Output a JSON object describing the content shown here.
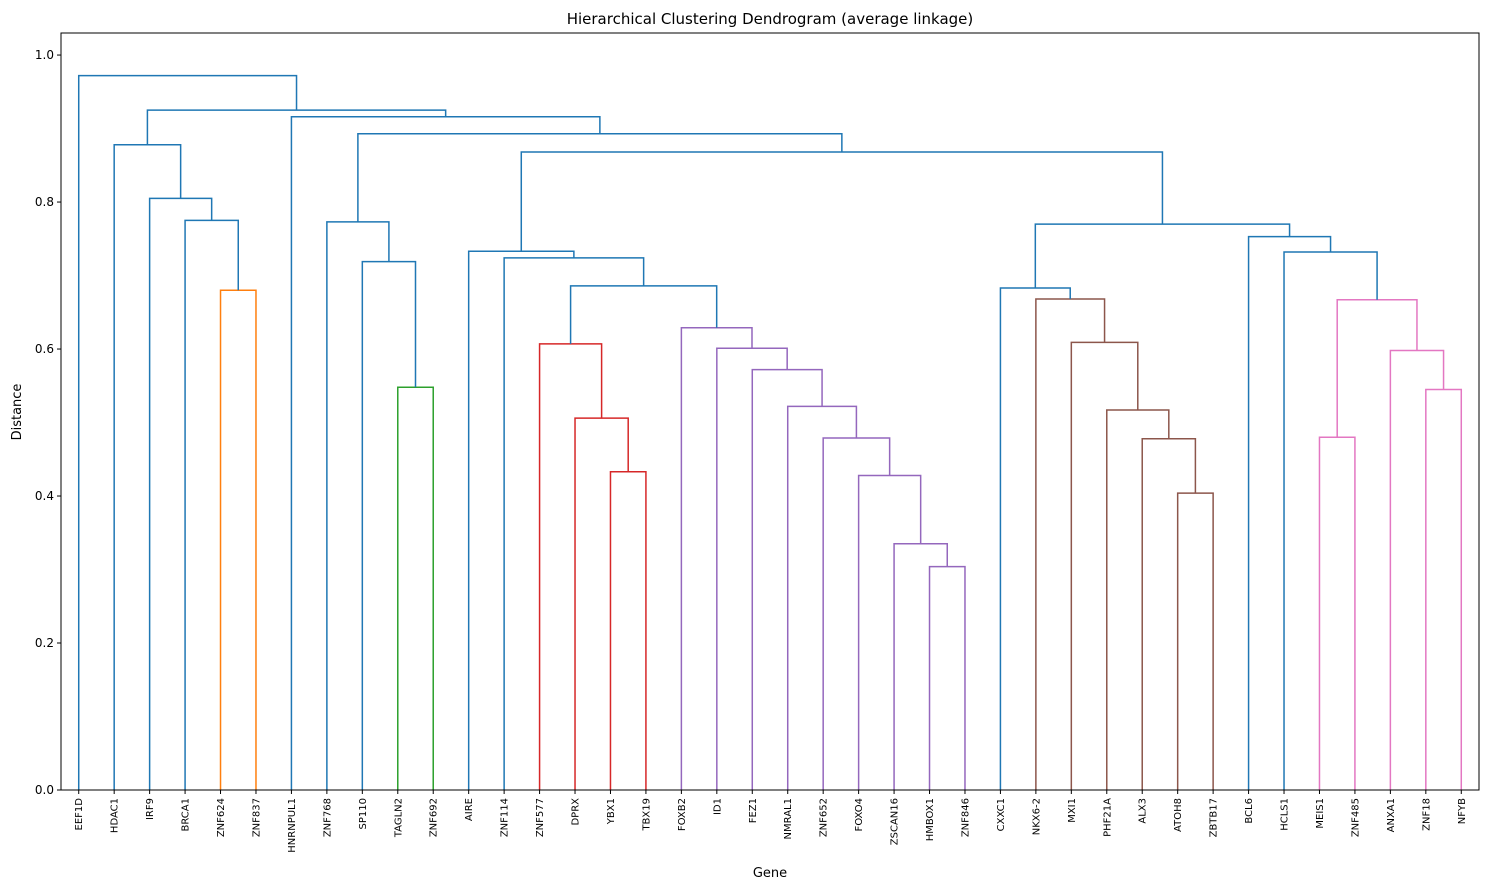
{
  "chart_data": {
    "type": "dendrogram",
    "title": "Hierarchical Clustering Dendrogram (average linkage)",
    "xlabel": "Gene",
    "ylabel": "Distance",
    "ylim": [
      0,
      1.03
    ],
    "yticks": [
      "0.0",
      "0.2",
      "0.4",
      "0.6",
      "0.8",
      "1.0"
    ],
    "grid": false,
    "leaves": [
      "EEF1D",
      "HDAC1",
      "IRF9",
      "BRCA1",
      "ZNF624",
      "ZNF837",
      "HNRNPUL1",
      "ZNF768",
      "SP110",
      "TAGLN2",
      "ZNF692",
      "AIRE",
      "ZNF114",
      "ZNF577",
      "DPRX",
      "YBX1",
      "TBX19",
      "FOXB2",
      "ID1",
      "FEZ1",
      "NMRAL1",
      "ZNF652",
      "FOXO4",
      "ZSCAN16",
      "HMBOX1",
      "ZNF846",
      "CXXC1",
      "NKX6-2",
      "MXI1",
      "PHF21A",
      "ALX3",
      "ATOH8",
      "ZBTB17",
      "BCL6",
      "HCLS1",
      "MEIS1",
      "ZNF485",
      "ANXA1",
      "ZNF18",
      "NFYB"
    ],
    "colors": {
      "above_threshold": "#1f77b4",
      "C1": "#ff7f0e",
      "C2": "#2ca02c",
      "C3": "#d62728",
      "C4": "#9467bd",
      "C5": "#8c564b",
      "C6": "#e377c2"
    },
    "merges": [
      {
        "a": "ZNF624",
        "b": "ZNF837",
        "height": 0.68,
        "color": "C1"
      },
      {
        "a": "BRCA1",
        "b": "m0",
        "height": 0.775,
        "color": "above_threshold"
      },
      {
        "a": "IRF9",
        "b": "m1",
        "height": 0.805,
        "color": "above_threshold"
      },
      {
        "a": "HDAC1",
        "b": "m2",
        "height": 0.878,
        "color": "above_threshold"
      },
      {
        "a": "TAGLN2",
        "b": "ZNF692",
        "height": 0.548,
        "color": "C2"
      },
      {
        "a": "SP110",
        "b": "m4",
        "height": 0.719,
        "color": "above_threshold"
      },
      {
        "a": "ZNF768",
        "b": "m5",
        "height": 0.773,
        "color": "above_threshold"
      },
      {
        "a": "YBX1",
        "b": "TBX19",
        "height": 0.433,
        "color": "C3"
      },
      {
        "a": "DPRX",
        "b": "m7",
        "height": 0.506,
        "color": "C3"
      },
      {
        "a": "ZNF577",
        "b": "m8",
        "height": 0.607,
        "color": "C3"
      },
      {
        "a": "HMBOX1",
        "b": "ZNF846",
        "height": 0.304,
        "color": "C4"
      },
      {
        "a": "ZSCAN16",
        "b": "m10",
        "height": 0.335,
        "color": "C4"
      },
      {
        "a": "FOXO4",
        "b": "m11",
        "height": 0.428,
        "color": "C4"
      },
      {
        "a": "ZNF652",
        "b": "m12",
        "height": 0.479,
        "color": "C4"
      },
      {
        "a": "NMRAL1",
        "b": "m13",
        "height": 0.522,
        "color": "C4"
      },
      {
        "a": "FEZ1",
        "b": "m14",
        "height": 0.572,
        "color": "C4"
      },
      {
        "a": "ID1",
        "b": "m15",
        "height": 0.601,
        "color": "C4"
      },
      {
        "a": "FOXB2",
        "b": "m16",
        "height": 0.629,
        "color": "C4"
      },
      {
        "a": "m9",
        "b": "m17",
        "height": 0.686,
        "color": "above_threshold"
      },
      {
        "a": "ZNF114",
        "b": "m18",
        "height": 0.724,
        "color": "above_threshold"
      },
      {
        "a": "AIRE",
        "b": "m19",
        "height": 0.733,
        "color": "above_threshold"
      },
      {
        "a": "ATOH8",
        "b": "ZBTB17",
        "height": 0.404,
        "color": "C5"
      },
      {
        "a": "ALX3",
        "b": "m21",
        "height": 0.478,
        "color": "C5"
      },
      {
        "a": "PHF21A",
        "b": "m22",
        "height": 0.517,
        "color": "C5"
      },
      {
        "a": "MXI1",
        "b": "m23",
        "height": 0.609,
        "color": "C5"
      },
      {
        "a": "NKX6-2",
        "b": "m24",
        "height": 0.668,
        "color": "C5"
      },
      {
        "a": "CXXC1",
        "b": "m25",
        "height": 0.683,
        "color": "above_threshold"
      },
      {
        "a": "MEIS1",
        "b": "ZNF485",
        "height": 0.48,
        "color": "C6"
      },
      {
        "a": "ZNF18",
        "b": "NFYB",
        "height": 0.545,
        "color": "C6"
      },
      {
        "a": "ANXA1",
        "b": "m28",
        "height": 0.598,
        "color": "C6"
      },
      {
        "a": "m27",
        "b": "m29",
        "height": 0.667,
        "color": "C6"
      },
      {
        "a": "HCLS1",
        "b": "m30",
        "height": 0.732,
        "color": "above_threshold"
      },
      {
        "a": "BCL6",
        "b": "m31",
        "height": 0.753,
        "color": "above_threshold"
      },
      {
        "a": "m26",
        "b": "m32",
        "height": 0.77,
        "color": "above_threshold"
      },
      {
        "a": "m20",
        "b": "m33",
        "height": 0.868,
        "color": "above_threshold"
      },
      {
        "a": "m6",
        "b": "m34",
        "height": 0.893,
        "color": "above_threshold"
      },
      {
        "a": "HNRNPUL1",
        "b": "m35",
        "height": 0.916,
        "color": "above_threshold"
      },
      {
        "a": "m3",
        "b": "m36",
        "height": 0.925,
        "color": "above_threshold"
      },
      {
        "a": "EEF1D",
        "b": "m37",
        "height": 0.972,
        "color": "above_threshold"
      }
    ]
  }
}
